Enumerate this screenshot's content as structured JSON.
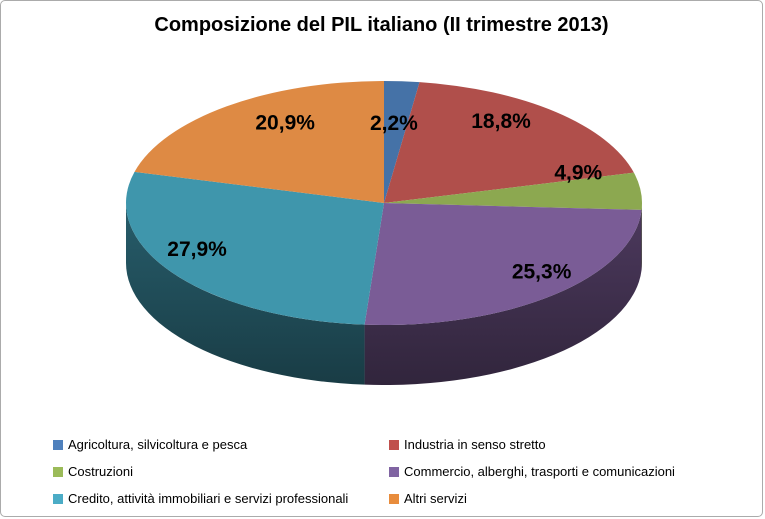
{
  "title": "Composizione del PIL italiano (II trimestre 2013)",
  "chart_data": {
    "type": "pie",
    "is_3d": true,
    "title": "Composizione del PIL italiano (II trimestre 2013)",
    "unit": "%",
    "decimal_separator": ",",
    "legend_position": "bottom",
    "total": 100,
    "slices": [
      {
        "label": "Agricoltura, silvicoltura e pesca",
        "value": 2.2,
        "display": "2,2%",
        "color": "#4572A7",
        "legend_color": "#4F81BD"
      },
      {
        "label": "Industria in senso stretto",
        "value": 18.8,
        "display": "18,8%",
        "color": "#B04F4B",
        "legend_color": "#C0504D"
      },
      {
        "label": "Costruzioni",
        "value": 4.9,
        "display": "4,9%",
        "color": "#8CA850",
        "legend_color": "#9BBB59"
      },
      {
        "label": "Commercio, alberghi, trasporti e comunicazioni",
        "value": 25.3,
        "display": "25,3%",
        "color": "#7A5C96",
        "legend_color": "#8064A2"
      },
      {
        "label": "Credito, attività immobiliari e servizi professionali",
        "value": 27.9,
        "display": "27,9%",
        "color": "#3F96AC",
        "legend_color": "#4BACC6"
      },
      {
        "label": "Altri servizi",
        "value": 20.9,
        "display": "20,9%",
        "color": "#DE8A44",
        "legend_color": "#E88C3C"
      }
    ]
  }
}
